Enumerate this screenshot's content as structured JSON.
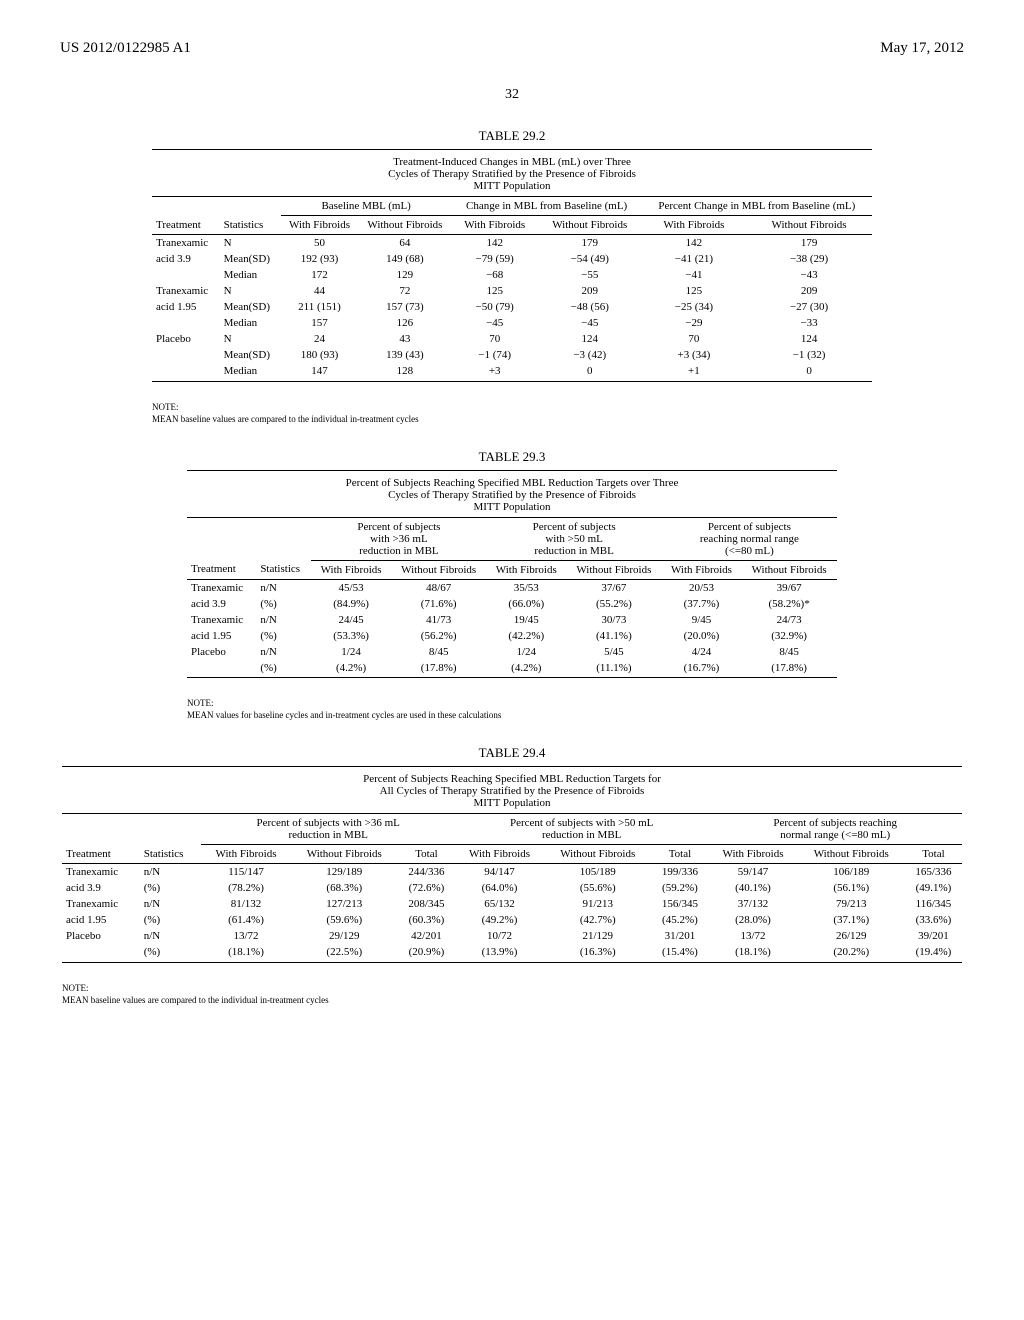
{
  "header": {
    "left": "US 2012/0122985 A1",
    "right": "May 17, 2012"
  },
  "page_number": "32",
  "table1": {
    "label": "TABLE 29.2",
    "caption_line1": "Treatment-Induced Changes in MBL (mL) over Three",
    "caption_line2": "Cycles of Therapy Stratified by the Presence of Fibroids",
    "caption_line3": "MITT Population",
    "group1": "Baseline MBL (mL)",
    "group2": "Change in MBL from Baseline (mL)",
    "group3": "Percent Change in MBL from Baseline (mL)",
    "h_treatment": "Treatment",
    "h_stats": "Statistics",
    "h_with": "With Fibroids",
    "h_without": "Without Fibroids",
    "rows": [
      {
        "t": "Tranexamic",
        "s": "N",
        "a": "50",
        "b": "64",
        "c": "142",
        "d": "179",
        "e": "142",
        "f": "179"
      },
      {
        "t": "acid 3.9",
        "s": "Mean(SD)",
        "a": "192 (93)",
        "b": "149 (68)",
        "c": "−79 (59)",
        "d": "−54 (49)",
        "e": "−41 (21)",
        "f": "−38 (29)"
      },
      {
        "t": "",
        "s": "Median",
        "a": "172",
        "b": "129",
        "c": "−68",
        "d": "−55",
        "e": "−41",
        "f": "−43"
      },
      {
        "t": "Tranexamic",
        "s": "N",
        "a": "44",
        "b": "72",
        "c": "125",
        "d": "209",
        "e": "125",
        "f": "209"
      },
      {
        "t": "acid 1.95",
        "s": "Mean(SD)",
        "a": "211 (151)",
        "b": "157 (73)",
        "c": "−50 (79)",
        "d": "−48 (56)",
        "e": "−25 (34)",
        "f": "−27 (30)"
      },
      {
        "t": "",
        "s": "Median",
        "a": "157",
        "b": "126",
        "c": "−45",
        "d": "−45",
        "e": "−29",
        "f": "−33"
      },
      {
        "t": "Placebo",
        "s": "N",
        "a": "24",
        "b": "43",
        "c": "70",
        "d": "124",
        "e": "70",
        "f": "124"
      },
      {
        "t": "",
        "s": "Mean(SD)",
        "a": "180 (93)",
        "b": "139 (43)",
        "c": "−1 (74)",
        "d": "−3 (42)",
        "e": "+3 (34)",
        "f": "−1 (32)"
      },
      {
        "t": "",
        "s": "Median",
        "a": "147",
        "b": "128",
        "c": "+3",
        "d": "0",
        "e": "+1",
        "f": "0"
      }
    ],
    "note1": "NOTE:",
    "note2": "MEAN baseline values are compared to the individual in-treatment cycles"
  },
  "table2": {
    "label": "TABLE 29.3",
    "caption_line1": "Percent of Subjects Reaching Specified MBL Reduction Targets over Three",
    "caption_line2": "Cycles of Therapy Stratified by the Presence of Fibroids",
    "caption_line3": "MITT Population",
    "group1a": "Percent of subjects",
    "group1b": "with >36 mL",
    "group1c": "reduction in MBL",
    "group2a": "Percent of subjects",
    "group2b": "with >50 mL",
    "group2c": "reduction in MBL",
    "group3a": "Percent of subjects",
    "group3b": "reaching normal range",
    "group3c": "(<=80 mL)",
    "h_treatment": "Treatment",
    "h_stats": "Statistics",
    "h_with": "With Fibroids",
    "h_without": "Without Fibroids",
    "rows": [
      {
        "t": "Tranexamic",
        "s": "n/N",
        "a": "45/53",
        "b": "48/67",
        "c": "35/53",
        "d": "37/67",
        "e": "20/53",
        "f": "39/67"
      },
      {
        "t": "acid 3.9",
        "s": "(%)",
        "a": "(84.9%)",
        "b": "(71.6%)",
        "c": "(66.0%)",
        "d": "(55.2%)",
        "e": "(37.7%)",
        "f": "(58.2%)*"
      },
      {
        "t": "Tranexamic",
        "s": "n/N",
        "a": "24/45",
        "b": "41/73",
        "c": "19/45",
        "d": "30/73",
        "e": "9/45",
        "f": "24/73"
      },
      {
        "t": "acid 1.95",
        "s": "(%)",
        "a": "(53.3%)",
        "b": "(56.2%)",
        "c": "(42.2%)",
        "d": "(41.1%)",
        "e": "(20.0%)",
        "f": "(32.9%)"
      },
      {
        "t": "Placebo",
        "s": "n/N",
        "a": "1/24",
        "b": "8/45",
        "c": "1/24",
        "d": "5/45",
        "e": "4/24",
        "f": "8/45"
      },
      {
        "t": "",
        "s": "(%)",
        "a": "(4.2%)",
        "b": "(17.8%)",
        "c": "(4.2%)",
        "d": "(11.1%)",
        "e": "(16.7%)",
        "f": "(17.8%)"
      }
    ],
    "note1": "NOTE:",
    "note2": "MEAN values for baseline cycles and in-treatment cycles are used in these calculations"
  },
  "table3": {
    "label": "TABLE 29.4",
    "caption_line1": "Percent of Subjects Reaching Specified MBL Reduction Targets for",
    "caption_line2": "All Cycles of Therapy Stratified by the Presence of Fibroids",
    "caption_line3": "MITT Population",
    "group1a": "Percent of subjects with >36 mL",
    "group1b": "reduction in MBL",
    "group2a": "Percent of subjects with >50 mL",
    "group2b": "reduction in MBL",
    "group3a": "Percent of subjects reaching",
    "group3b": "normal range (<=80 mL)",
    "h_treatment": "Treatment",
    "h_stats": "Statistics",
    "h_with": "With Fibroids",
    "h_without": "Without Fibroids",
    "h_total": "Total",
    "rows": [
      {
        "t": "Tranexamic",
        "s": "n/N",
        "a": "115/147",
        "b": "129/189",
        "c": "244/336",
        "d": "94/147",
        "e": "105/189",
        "f": "199/336",
        "g": "59/147",
        "h": "106/189",
        "i": "165/336"
      },
      {
        "t": "acid 3.9",
        "s": "(%)",
        "a": "(78.2%)",
        "b": "(68.3%)",
        "c": "(72.6%)",
        "d": "(64.0%)",
        "e": "(55.6%)",
        "f": "(59.2%)",
        "g": "(40.1%)",
        "h": "(56.1%)",
        "i": "(49.1%)"
      },
      {
        "t": "Tranexamic",
        "s": "n/N",
        "a": "81/132",
        "b": "127/213",
        "c": "208/345",
        "d": "65/132",
        "e": "91/213",
        "f": "156/345",
        "g": "37/132",
        "h": "79/213",
        "i": "116/345"
      },
      {
        "t": "acid 1.95",
        "s": "(%)",
        "a": "(61.4%)",
        "b": "(59.6%)",
        "c": "(60.3%)",
        "d": "(49.2%)",
        "e": "(42.7%)",
        "f": "(45.2%)",
        "g": "(28.0%)",
        "h": "(37.1%)",
        "i": "(33.6%)"
      },
      {
        "t": "Placebo",
        "s": "n/N",
        "a": "13/72",
        "b": "29/129",
        "c": "42/201",
        "d": "10/72",
        "e": "21/129",
        "f": "31/201",
        "g": "13/72",
        "h": "26/129",
        "i": "39/201"
      },
      {
        "t": "",
        "s": "(%)",
        "a": "(18.1%)",
        "b": "(22.5%)",
        "c": "(20.9%)",
        "d": "(13.9%)",
        "e": "(16.3%)",
        "f": "(15.4%)",
        "g": "(18.1%)",
        "h": "(20.2%)",
        "i": "(19.4%)"
      }
    ],
    "note1": "NOTE:",
    "note2": "MEAN baseline values are compared to the individual in-treatment cycles"
  }
}
